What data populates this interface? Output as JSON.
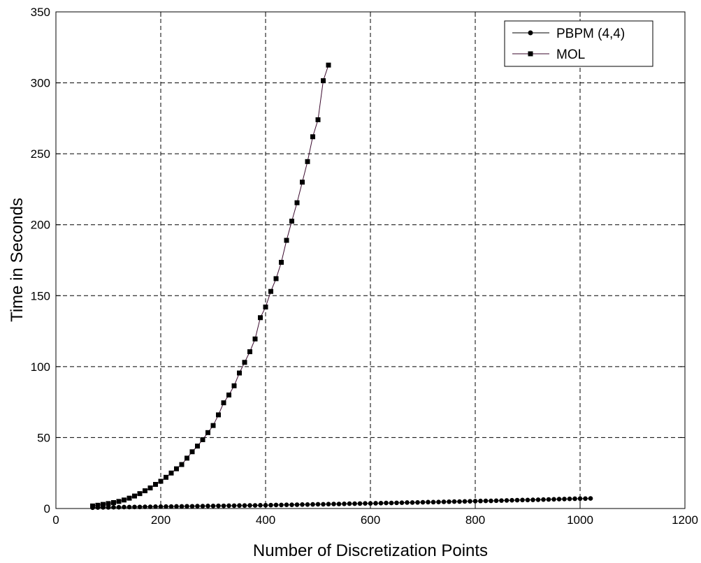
{
  "chart_data": {
    "type": "line",
    "xlabel": "Number of Discretization Points",
    "ylabel": "Time in Seconds",
    "xlim": [
      0,
      1200
    ],
    "ylim": [
      0,
      350
    ],
    "xticks": [
      0,
      200,
      400,
      600,
      800,
      1000,
      1200
    ],
    "yticks": [
      0,
      50,
      100,
      150,
      200,
      250,
      300,
      350
    ],
    "grid": true,
    "legend_position": "top-right",
    "series": [
      {
        "name": "PBPM (4,4)",
        "marker": "circle",
        "color": "#000000",
        "x": [
          70,
          80,
          90,
          100,
          110,
          120,
          130,
          140,
          150,
          160,
          170,
          180,
          190,
          200,
          210,
          220,
          230,
          240,
          250,
          260,
          270,
          280,
          290,
          300,
          310,
          320,
          330,
          340,
          350,
          360,
          370,
          380,
          390,
          400,
          410,
          420,
          430,
          440,
          450,
          460,
          470,
          480,
          490,
          500,
          510,
          520,
          530,
          540,
          550,
          560,
          570,
          580,
          590,
          600,
          610,
          620,
          630,
          640,
          650,
          660,
          670,
          680,
          690,
          700,
          710,
          720,
          730,
          740,
          750,
          760,
          770,
          780,
          790,
          800,
          810,
          820,
          830,
          840,
          850,
          860,
          870,
          880,
          890,
          900,
          910,
          920,
          930,
          940,
          950,
          960,
          970,
          980,
          990,
          1000,
          1010,
          1020
        ],
        "y": [
          0.6,
          0.7,
          0.8,
          0.8,
          0.9,
          0.9,
          1.0,
          1.0,
          1.1,
          1.1,
          1.2,
          1.2,
          1.3,
          1.3,
          1.4,
          1.4,
          1.5,
          1.5,
          1.6,
          1.6,
          1.7,
          1.7,
          1.8,
          1.8,
          1.9,
          1.9,
          2.0,
          2.0,
          2.1,
          2.1,
          2.2,
          2.2,
          2.3,
          2.3,
          2.4,
          2.5,
          2.5,
          2.6,
          2.6,
          2.7,
          2.8,
          2.8,
          2.9,
          3.0,
          3.0,
          3.1,
          3.2,
          3.2,
          3.3,
          3.4,
          3.4,
          3.5,
          3.6,
          3.6,
          3.7,
          3.8,
          3.9,
          3.9,
          4.0,
          4.1,
          4.2,
          4.2,
          4.3,
          4.4,
          4.5,
          4.5,
          4.6,
          4.7,
          4.8,
          4.9,
          4.9,
          5.0,
          5.1,
          5.2,
          5.3,
          5.4,
          5.4,
          5.5,
          5.6,
          5.7,
          5.8,
          5.9,
          6.0,
          6.0,
          6.1,
          6.2,
          6.3,
          6.4,
          6.5,
          6.6,
          6.7,
          6.8,
          6.9,
          7.0,
          7.0,
          7.1
        ]
      },
      {
        "name": "MOL",
        "marker": "square",
        "color": "#3b0a2e",
        "x": [
          70,
          80,
          90,
          100,
          110,
          120,
          130,
          140,
          150,
          160,
          170,
          180,
          190,
          200,
          210,
          220,
          230,
          240,
          250,
          260,
          270,
          280,
          290,
          300,
          310,
          320,
          330,
          340,
          350,
          360,
          370,
          380,
          390,
          400,
          410,
          420,
          430,
          440,
          450,
          460,
          470,
          480,
          490,
          500,
          510,
          520
        ],
        "y": [
          1.8,
          2.3,
          2.9,
          3.5,
          4.2,
          5.0,
          6.0,
          7.3,
          8.8,
          10.5,
          12.5,
          14.5,
          17.0,
          19.2,
          22.0,
          25.0,
          28.0,
          31.0,
          35.5,
          40.0,
          44.0,
          48.5,
          53.5,
          58.5,
          66.0,
          74.5,
          80.0,
          86.5,
          95.5,
          103.0,
          110.5,
          119.5,
          134.5,
          142.0,
          153.0,
          162.0,
          173.5,
          189.0,
          202.5,
          215.5,
          230.0,
          244.5,
          262.0,
          274.0,
          301.5,
          312.5
        ]
      }
    ]
  }
}
